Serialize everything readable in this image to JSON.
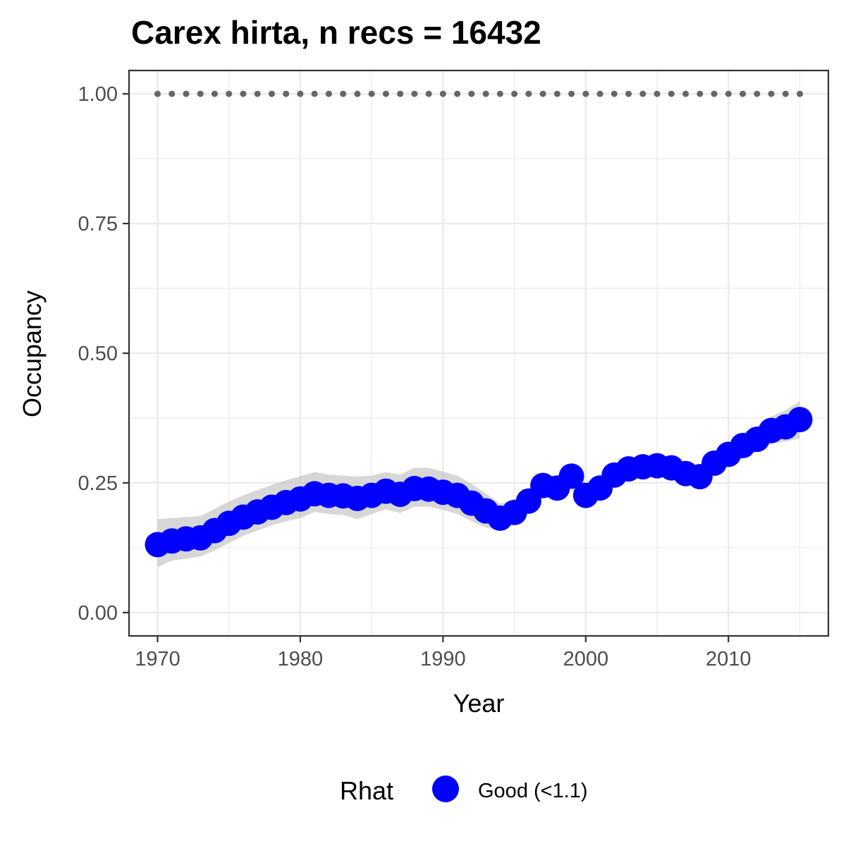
{
  "chart_data": {
    "type": "line",
    "title": "Carex hirta, n recs = 16432",
    "xlabel": "Year",
    "ylabel": "Occupancy",
    "xlim": [
      1968,
      2017
    ],
    "ylim": [
      -0.045,
      1.045
    ],
    "x_ticks": [
      1970,
      1980,
      1990,
      2000,
      2010
    ],
    "x_tick_labels": [
      "1970",
      "1980",
      "1990",
      "2000",
      "2010"
    ],
    "y_ticks": [
      0,
      0.25,
      0.5,
      0.75,
      1.0
    ],
    "y_tick_labels": [
      "0.00",
      "0.25",
      "0.50",
      "0.75",
      "1.00"
    ],
    "grid": true,
    "legend": {
      "position": "bottom",
      "title": "Rhat",
      "entries": [
        {
          "label": "Good (<1.1)",
          "color": "#0000ff"
        }
      ]
    },
    "x": [
      1970,
      1971,
      1972,
      1973,
      1974,
      1975,
      1976,
      1977,
      1978,
      1979,
      1980,
      1981,
      1982,
      1983,
      1984,
      1985,
      1986,
      1987,
      1988,
      1989,
      1990,
      1991,
      1992,
      1993,
      1994,
      1995,
      1996,
      1997,
      1998,
      1999,
      2000,
      2001,
      2002,
      2003,
      2004,
      2005,
      2006,
      2007,
      2008,
      2009,
      2010,
      2011,
      2012,
      2013,
      2014,
      2015
    ],
    "series": [
      {
        "color": "#0000ff",
        "values": [
          0.131,
          0.138,
          0.142,
          0.144,
          0.158,
          0.172,
          0.184,
          0.194,
          0.203,
          0.212,
          0.219,
          0.229,
          0.226,
          0.225,
          0.22,
          0.226,
          0.234,
          0.228,
          0.239,
          0.238,
          0.232,
          0.226,
          0.211,
          0.196,
          0.182,
          0.193,
          0.215,
          0.245,
          0.24,
          0.263,
          0.226,
          0.24,
          0.265,
          0.277,
          0.281,
          0.283,
          0.279,
          0.268,
          0.262,
          0.288,
          0.305,
          0.322,
          0.334,
          0.351,
          0.358,
          0.372
        ],
        "lower": [
          0.088,
          0.1,
          0.104,
          0.108,
          0.12,
          0.134,
          0.148,
          0.158,
          0.168,
          0.176,
          0.182,
          0.194,
          0.19,
          0.188,
          0.18,
          0.19,
          0.199,
          0.192,
          0.204,
          0.204,
          0.198,
          0.19,
          0.176,
          0.164,
          0.158,
          0.17,
          0.193,
          0.222,
          0.218,
          0.238,
          0.205,
          0.22,
          0.245,
          0.259,
          0.264,
          0.266,
          0.262,
          0.252,
          0.244,
          0.268,
          0.284,
          0.298,
          0.31,
          0.325,
          0.33,
          0.336
        ],
        "upper": [
          0.18,
          0.182,
          0.184,
          0.186,
          0.2,
          0.214,
          0.226,
          0.236,
          0.246,
          0.255,
          0.263,
          0.271,
          0.266,
          0.264,
          0.262,
          0.264,
          0.271,
          0.266,
          0.279,
          0.279,
          0.272,
          0.264,
          0.248,
          0.23,
          0.21,
          0.218,
          0.238,
          0.268,
          0.262,
          0.286,
          0.248,
          0.262,
          0.285,
          0.295,
          0.298,
          0.3,
          0.296,
          0.284,
          0.28,
          0.308,
          0.326,
          0.346,
          0.36,
          0.378,
          0.39,
          0.408
        ]
      }
    ],
    "reference_points": {
      "y": 1.0,
      "color": "#666666"
    }
  }
}
